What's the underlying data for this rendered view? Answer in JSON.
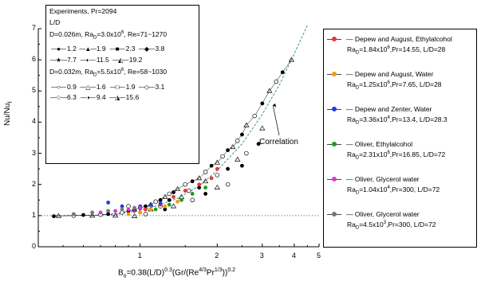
{
  "chart_data": {
    "type": "scatter",
    "title": "",
    "xlabel": "B_o=0.38(L/D)^0.3(Gr/(Re^4/3 Pr^1/3))^0.2",
    "xlabel_parts": {
      "a": "B",
      "sub": "o",
      "b": "=0.38(L/D)",
      "s1": "0.3",
      "c": "(Gr/(Re",
      "s2": "4/3",
      "d": "Pr",
      "s3": "1/3",
      "e": "))",
      "s4": "0.2"
    },
    "ylabel": "Nu/Nu",
    "ylabel_sub": "f",
    "x_scale": "log",
    "xlim": [
      0.4,
      5
    ],
    "ylim": [
      0,
      7
    ],
    "x_ticks": [
      {
        "v": 1,
        "label": "1"
      },
      {
        "v": 2,
        "label": "2"
      },
      {
        "v": 3,
        "label": "3"
      },
      {
        "v": 4,
        "label": "4"
      },
      {
        "v": 5,
        "label": "5"
      }
    ],
    "y_ticks": [
      "0",
      "1",
      "2",
      "3",
      "4",
      "5",
      "6",
      "7"
    ],
    "reference_line": {
      "y": 1,
      "style": "dotted"
    },
    "correlation": {
      "label": "Correlation",
      "x": [
        0.45,
        0.7,
        0.9,
        1.1,
        1.4,
        1.7,
        2.0,
        2.5,
        3.0,
        3.5,
        4.0,
        4.5
      ],
      "y": [
        1.0,
        1.02,
        1.1,
        1.25,
        1.55,
        1.95,
        2.45,
        3.3,
        4.25,
        5.2,
        6.2,
        7.1
      ]
    },
    "inner_legend": {
      "header1": "Experiments, Pr=2094",
      "header2": "L/D",
      "group1_label": "D=0.026m, Ra",
      "group1_sub": "D",
      "group1_value": "=3.0x10",
      "group1_exp": "6",
      "group1_re": ", Re=71~1270",
      "group1_series": [
        {
          "marker": "●",
          "value": "1.2"
        },
        {
          "marker": "▲",
          "value": "1.9"
        },
        {
          "marker": "■",
          "value": "2.3"
        },
        {
          "marker": "◆",
          "value": "3.8"
        },
        {
          "marker": "★",
          "value": "7.7"
        },
        {
          "marker": "◐",
          "value": "11.5"
        },
        {
          "marker": "◭",
          "value": "19.2"
        }
      ],
      "group2_label": "D=0.032m, Ra",
      "group2_sub": "D",
      "group2_value": "=5.5x10",
      "group2_exp": "6",
      "group2_re": ", Re=58~1030",
      "group2_series": [
        {
          "marker": "○",
          "value": "0.9"
        },
        {
          "marker": "△",
          "value": "1.6"
        },
        {
          "marker": "□",
          "value": "1.9"
        },
        {
          "marker": "◇",
          "value": "3.1"
        },
        {
          "marker": "☆",
          "value": "6.3"
        },
        {
          "marker": "◑",
          "value": "9.4"
        },
        {
          "marker": "◮",
          "value": "15.6"
        }
      ]
    },
    "right_legend": [
      {
        "name": "Depew and August, Ethylalcohol",
        "color": "#e53935",
        "p1": "Ra",
        "sub": "D",
        "p2": "=1.84x10",
        "exp": "6",
        "p3": ",Pr=14.55, L/D=28"
      },
      {
        "name": "Depew and August, Water",
        "color": "#f39c12",
        "p1": "Ra",
        "sub": "D",
        "p2": "=1.25x10",
        "exp": "6",
        "p3": ",Pr=7.65, L/D=28"
      },
      {
        "name": "Depew and Zenter, Water",
        "color": "#1e3fd8",
        "p1": "Ra",
        "sub": "D",
        "p2": "=3.36x10",
        "exp": "4",
        "p3": ",Pr=13.4, L/D=28.3"
      },
      {
        "name": "Oliver, Ethylalcohol",
        "color": "#1a9e1a",
        "p1": "Ra",
        "sub": "D",
        "p2": "=2.31x10",
        "exp": "6",
        "p3": ",Pr=16.85, L/D=72"
      },
      {
        "name": "Oliver, Glycerol water",
        "color": "#d63ad6",
        "p1": "Ra",
        "sub": "D",
        "p2": "=1.04x10",
        "exp": "4",
        "p3": ",Pr=300, L/D=72"
      },
      {
        "name": "Oliver, Glycerol water",
        "color": "#777777",
        "p1": "Ra",
        "sub": "D",
        "p2": "=4.5x10",
        "exp": "3",
        "p3": ",Pr=300, L/D=72"
      }
    ],
    "points": {
      "black": [
        [
          0.46,
          0.98
        ],
        [
          0.48,
          0.99
        ],
        [
          0.55,
          1.0
        ],
        [
          0.6,
          1.02
        ],
        [
          0.65,
          1.0
        ],
        [
          0.7,
          1.03
        ],
        [
          0.75,
          1.05
        ],
        [
          0.8,
          1.0
        ],
        [
          0.85,
          1.1
        ],
        [
          0.9,
          1.15
        ],
        [
          0.95,
          1.2
        ],
        [
          1.0,
          1.25
        ],
        [
          1.05,
          1.3
        ],
        [
          1.1,
          1.35
        ],
        [
          1.15,
          1.45
        ],
        [
          1.2,
          1.5
        ],
        [
          1.25,
          1.6
        ],
        [
          1.3,
          1.7
        ],
        [
          1.35,
          1.75
        ],
        [
          1.4,
          1.85
        ],
        [
          1.5,
          2.0
        ],
        [
          1.6,
          2.1
        ],
        [
          1.7,
          2.2
        ],
        [
          1.8,
          2.4
        ],
        [
          1.9,
          2.6
        ],
        [
          2.0,
          2.7
        ],
        [
          2.1,
          2.9
        ],
        [
          2.2,
          3.1
        ],
        [
          2.3,
          3.2
        ],
        [
          2.4,
          3.4
        ],
        [
          2.5,
          3.6
        ],
        [
          2.6,
          3.9
        ],
        [
          2.8,
          4.2
        ],
        [
          3.0,
          4.6
        ],
        [
          3.2,
          5.0
        ],
        [
          3.4,
          5.3
        ],
        [
          3.6,
          5.6
        ],
        [
          3.9,
          6.0
        ],
        [
          0.9,
          1.3
        ],
        [
          1.0,
          1.1
        ],
        [
          1.1,
          1.2
        ],
        [
          1.2,
          1.3
        ],
        [
          1.3,
          1.5
        ],
        [
          1.45,
          1.6
        ],
        [
          1.55,
          1.8
        ],
        [
          1.7,
          1.9
        ],
        [
          1.8,
          2.1
        ],
        [
          2.0,
          2.3
        ],
        [
          2.2,
          2.5
        ],
        [
          2.4,
          2.8
        ],
        [
          2.6,
          3.0
        ],
        [
          2.9,
          3.3
        ],
        [
          3.0,
          3.8
        ],
        [
          1.6,
          1.5
        ],
        [
          1.8,
          1.7
        ],
        [
          2.0,
          1.9
        ],
        [
          2.2,
          2.0
        ],
        [
          2.5,
          2.6
        ],
        [
          0.95,
          0.98
        ],
        [
          1.05,
          1.05
        ],
        [
          1.25,
          1.2
        ],
        [
          1.35,
          1.3
        ]
      ],
      "red": [
        [
          0.95,
          1.15
        ],
        [
          1.05,
          1.2
        ],
        [
          1.2,
          1.35
        ],
        [
          1.35,
          1.6
        ],
        [
          1.5,
          1.8
        ],
        [
          1.7,
          2.0
        ],
        [
          1.9,
          2.2
        ],
        [
          2.0,
          2.5
        ]
      ],
      "orange": [
        [
          0.9,
          1.05
        ],
        [
          1.0,
          1.1
        ],
        [
          1.1,
          1.2
        ],
        [
          1.25,
          1.3
        ],
        [
          1.4,
          1.45
        ]
      ],
      "blue": [
        [
          0.75,
          1.42
        ],
        [
          0.85,
          1.3
        ],
        [
          0.95,
          1.2
        ],
        [
          1.0,
          1.3
        ],
        [
          1.1,
          1.35
        ],
        [
          1.2,
          1.4
        ]
      ],
      "green": [
        [
          1.15,
          1.2
        ],
        [
          1.3,
          1.35
        ],
        [
          1.45,
          1.5
        ],
        [
          1.6,
          1.7
        ],
        [
          1.8,
          1.9
        ]
      ],
      "magenta": [
        [
          0.7,
          1.1
        ],
        [
          0.8,
          1.15
        ],
        [
          0.9,
          1.2
        ],
        [
          1.0,
          1.25
        ]
      ],
      "grey": [
        [
          0.55,
          1.05
        ],
        [
          0.65,
          1.1
        ],
        [
          0.75,
          1.15
        ],
        [
          0.85,
          1.2
        ],
        [
          0.95,
          1.25
        ]
      ]
    }
  }
}
